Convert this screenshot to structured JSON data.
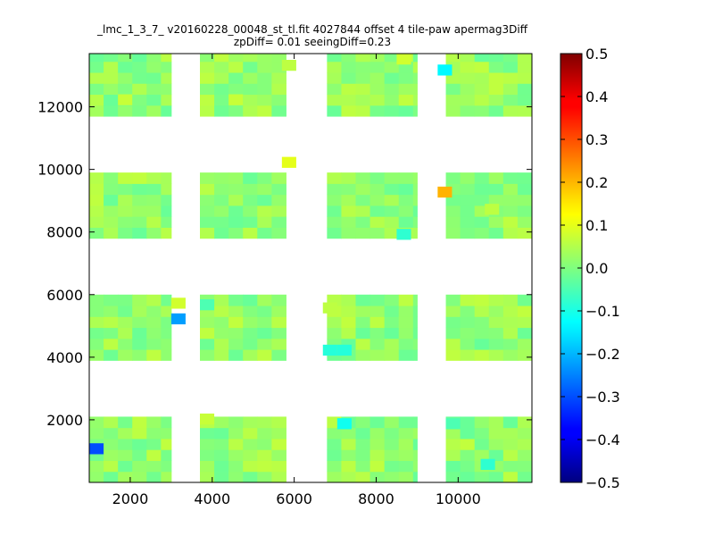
{
  "chart_data": {
    "type": "heatmap",
    "title_line1": "_lmc_1_3_7_ v20160228_00048_st_tl.fit 4027844 offset 4 tile-paw apermag3Diff",
    "title_line2": "zpDiff= 0.01 seeingDiff=0.23",
    "xlim": [
      1000,
      11800
    ],
    "ylim": [
      0,
      13700
    ],
    "x_ticks": [
      2000,
      4000,
      6000,
      8000,
      10000
    ],
    "y_ticks": [
      2000,
      4000,
      6000,
      8000,
      10000,
      12000
    ],
    "colormap": "jet",
    "colorbar": {
      "min": -0.5,
      "max": 0.5,
      "ticks": [
        0.5,
        0.4,
        0.3,
        0.2,
        0.1,
        0.0,
        -0.1,
        -0.2,
        -0.3,
        -0.4,
        -0.5
      ],
      "tick_labels": [
        "0.5",
        "0.4",
        "0.3",
        "0.2",
        "0.1",
        "0.0",
        "−0.1",
        "−0.2",
        "−0.3",
        "−0.4",
        "−0.5"
      ]
    },
    "cell_size": [
      350,
      350
    ],
    "detector_blocks": {
      "x_ranges": [
        [
          1000,
          3000
        ],
        [
          3700,
          5800
        ],
        [
          6800,
          9000
        ],
        [
          9700,
          11800
        ]
      ],
      "y_ranges": [
        [
          0,
          2100
        ],
        [
          3900,
          6000
        ],
        [
          7800,
          9900
        ],
        [
          11700,
          13700
        ]
      ],
      "base_value": 0.02
    },
    "highlight_cells": [
      {
        "x": 1175,
        "y": 1075,
        "value": -0.3
      },
      {
        "x": 3175,
        "y": 5725,
        "value": 0.08
      },
      {
        "x": 3175,
        "y": 5225,
        "value": -0.22
      },
      {
        "x": 3875,
        "y": 2025,
        "value": 0.07
      },
      {
        "x": 5875,
        "y": 10225,
        "value": 0.1
      },
      {
        "x": 6875,
        "y": 4225,
        "value": -0.09
      },
      {
        "x": 7225,
        "y": 4225,
        "value": -0.09
      },
      {
        "x": 7225,
        "y": 1875,
        "value": -0.11
      },
      {
        "x": 9675,
        "y": 13175,
        "value": -0.13
      },
      {
        "x": 9675,
        "y": 9275,
        "value": 0.2
      },
      {
        "x": 10725,
        "y": 575,
        "value": -0.08
      },
      {
        "x": 9875,
        "y": 1875,
        "value": -0.05
      },
      {
        "x": 8675,
        "y": 7925,
        "value": -0.08
      },
      {
        "x": 8675,
        "y": 13525,
        "value": 0.08
      },
      {
        "x": 10825,
        "y": 8725,
        "value": 0.06
      },
      {
        "x": 5875,
        "y": 13325,
        "value": 0.06
      },
      {
        "x": 1875,
        "y": 12225,
        "value": 0.07
      },
      {
        "x": 4575,
        "y": 12225,
        "value": 0.07
      },
      {
        "x": 3875,
        "y": 5675,
        "value": -0.05
      },
      {
        "x": 6875,
        "y": 5575,
        "value": 0.06
      }
    ]
  }
}
